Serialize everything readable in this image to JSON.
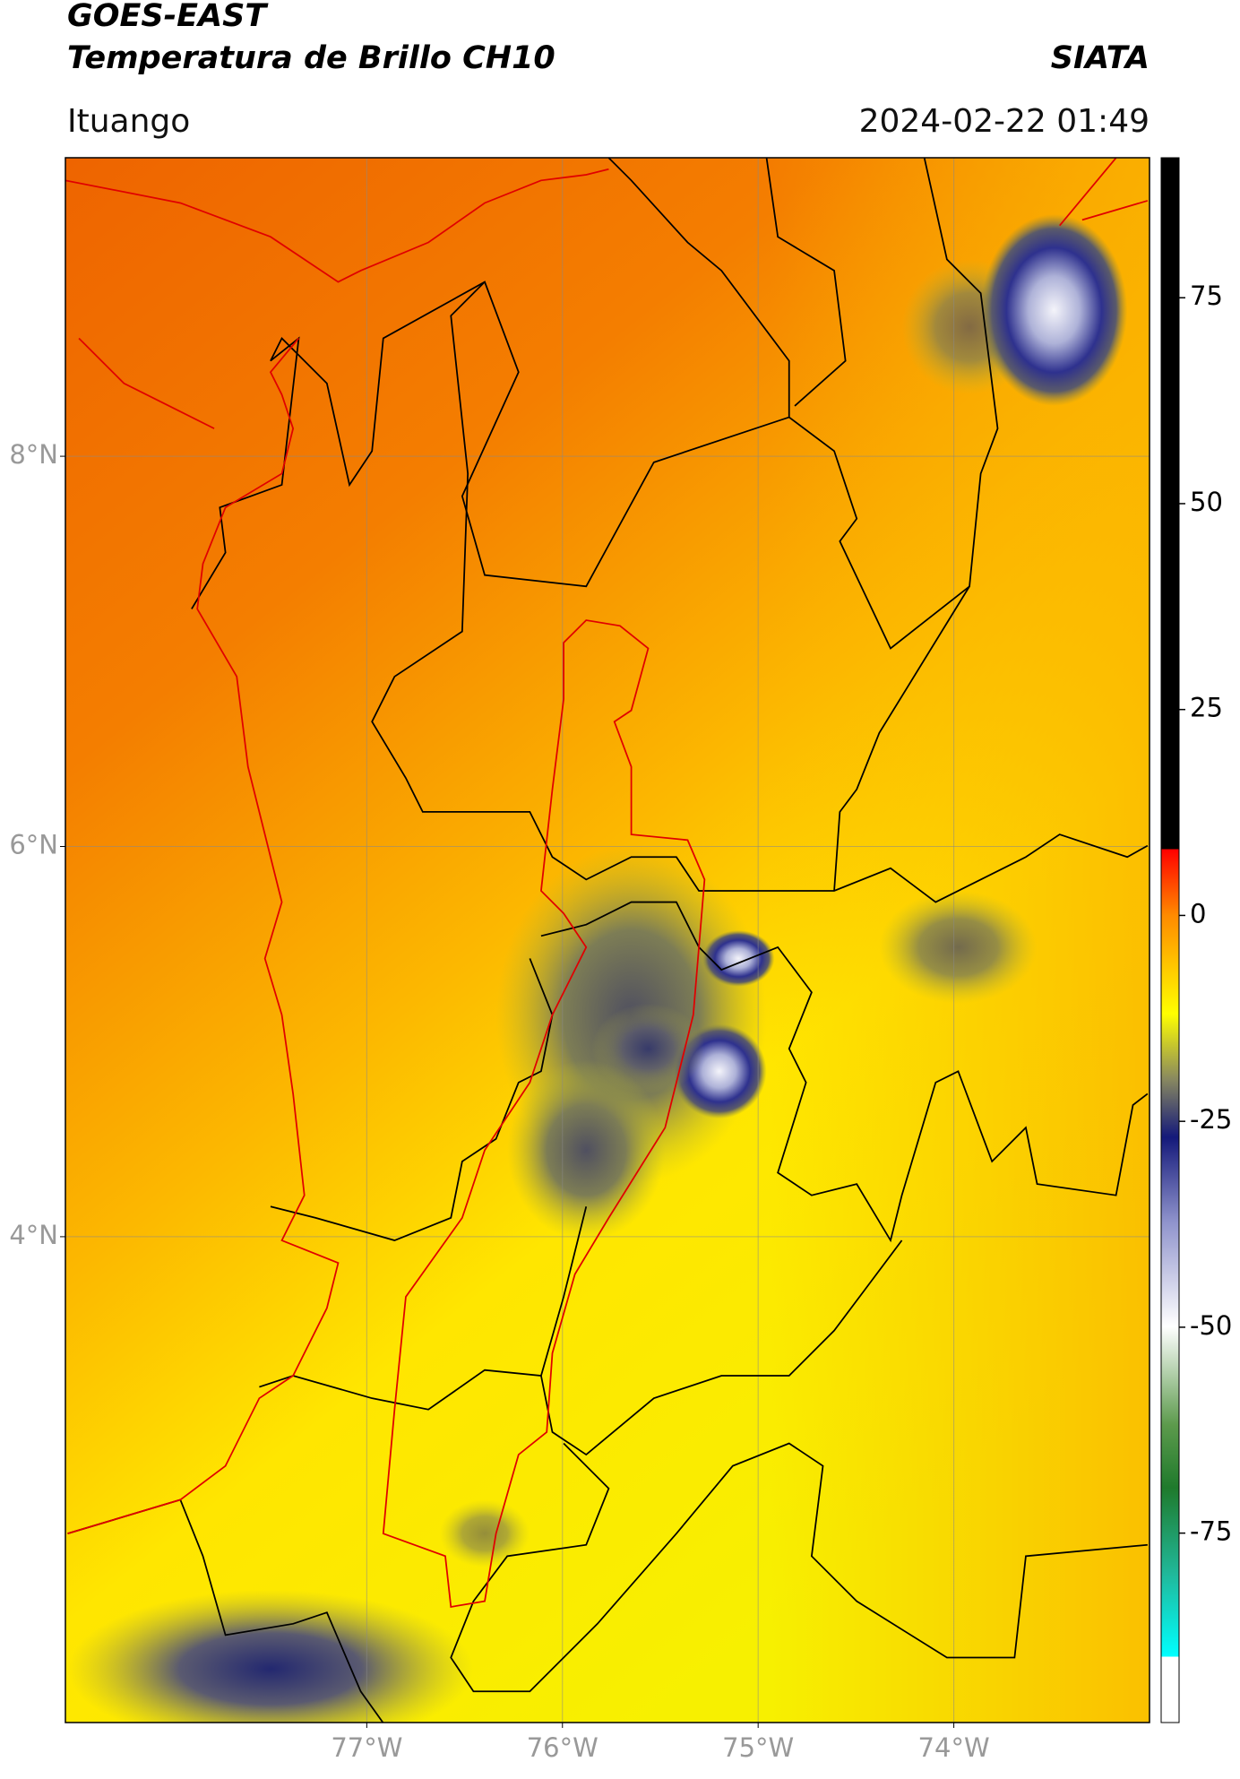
{
  "header": {
    "title": "GOES-EAST",
    "subtitle": "Temperatura de Brillo CH10",
    "organization": "SIATA",
    "location": "Ituango",
    "datetime": "2024-02-22 01:49"
  },
  "map": {
    "lonlim": [
      -78.54,
      -73.0
    ],
    "latlim": [
      1.51,
      9.53
    ],
    "lat_ticks": [
      {
        "value": 8,
        "label": "8°N"
      },
      {
        "value": 6,
        "label": "6°N"
      },
      {
        "value": 4,
        "label": "4°N"
      }
    ],
    "lon_ticks": [
      {
        "value": -77,
        "label": "77°W"
      },
      {
        "value": -76,
        "label": "76°W"
      },
      {
        "value": -75,
        "label": "75°W"
      },
      {
        "value": -74,
        "label": "74°W"
      }
    ]
  },
  "colorbar": {
    "clim": [
      -98,
      92
    ],
    "ticks": [
      75,
      50,
      25,
      0,
      -25,
      -50,
      -75
    ]
  }
}
